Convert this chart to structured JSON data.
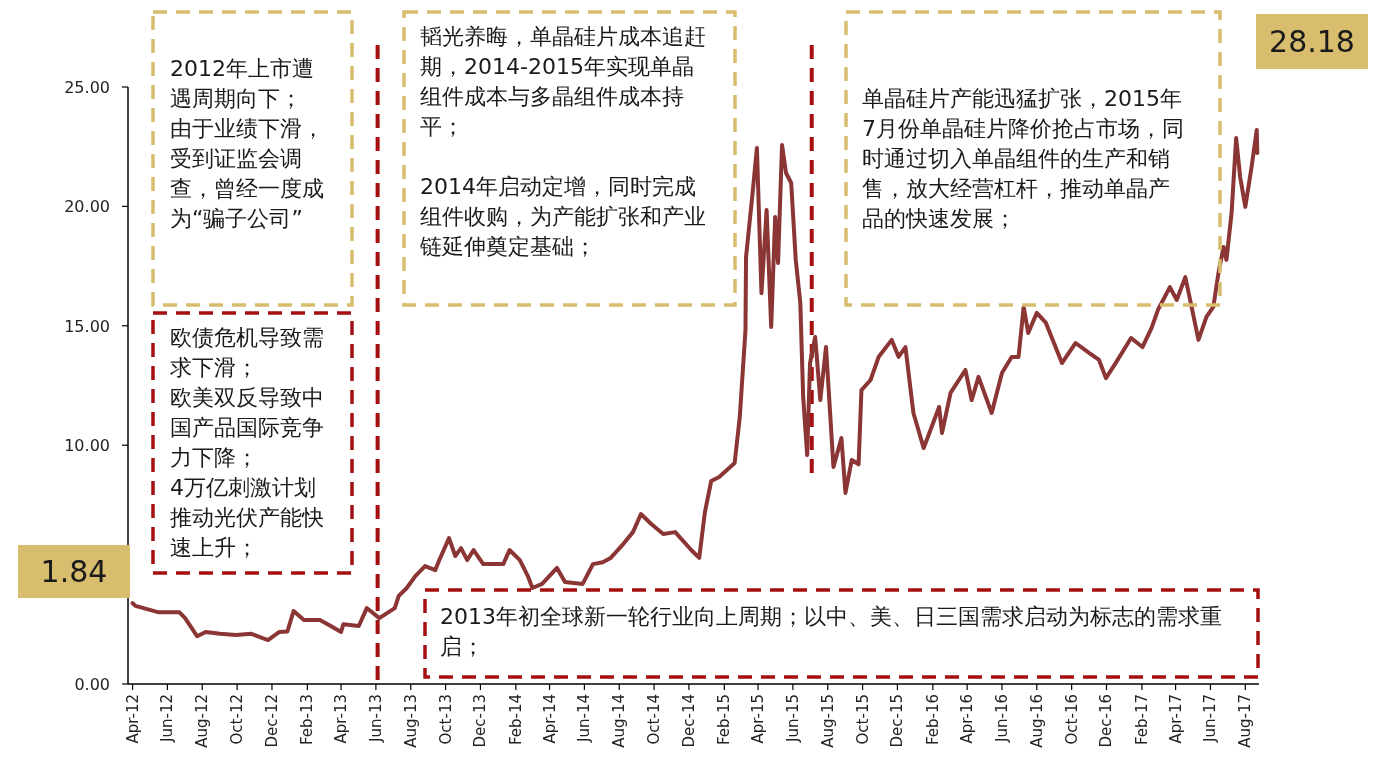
{
  "chart_data": {
    "type": "line",
    "xlim": [
      "2012-03-24",
      "2017-08-25"
    ],
    "ylim": [
      0,
      25
    ],
    "yticks": [
      {
        "value": 0,
        "label": "0.00"
      },
      {
        "value": 5,
        "label": null
      },
      {
        "value": 10,
        "label": "10.00"
      },
      {
        "value": 15,
        "label": "15.00"
      },
      {
        "value": 20,
        "label": "20.00"
      },
      {
        "value": 25,
        "label": "25.00"
      }
    ],
    "xticks": [
      {
        "value": "2012-04-01",
        "label": "Apr-12"
      },
      {
        "value": "2012-06-01",
        "label": "Jun-12"
      },
      {
        "value": "2012-08-01",
        "label": "Aug-12"
      },
      {
        "value": "2012-10-01",
        "label": "Oct-12"
      },
      {
        "value": "2012-12-01",
        "label": "Dec-12"
      },
      {
        "value": "2013-02-01",
        "label": "Feb-13"
      },
      {
        "value": "2013-04-01",
        "label": "Apr-13"
      },
      {
        "value": "2013-06-01",
        "label": "Jun-13"
      },
      {
        "value": "2013-08-01",
        "label": "Aug-13"
      },
      {
        "value": "2013-10-01",
        "label": "Oct-13"
      },
      {
        "value": "2013-12-01",
        "label": "Dec-13"
      },
      {
        "value": "2014-02-01",
        "label": "Feb-14"
      },
      {
        "value": "2014-04-01",
        "label": "Apr-14"
      },
      {
        "value": "2014-06-01",
        "label": "Jun-14"
      },
      {
        "value": "2014-08-01",
        "label": "Aug-14"
      },
      {
        "value": "2014-10-01",
        "label": "Oct-14"
      },
      {
        "value": "2014-12-01",
        "label": "Dec-14"
      },
      {
        "value": "2015-02-01",
        "label": "Feb-15"
      },
      {
        "value": "2015-04-01",
        "label": "Apr-15"
      },
      {
        "value": "2015-06-01",
        "label": "Jun-15"
      },
      {
        "value": "2015-08-01",
        "label": "Aug-15"
      },
      {
        "value": "2015-10-01",
        "label": "Oct-15"
      },
      {
        "value": "2015-12-01",
        "label": "Dec-15"
      },
      {
        "value": "2016-02-01",
        "label": "Feb-16"
      },
      {
        "value": "2016-04-01",
        "label": "Apr-16"
      },
      {
        "value": "2016-06-01",
        "label": "Jun-16"
      },
      {
        "value": "2016-08-01",
        "label": "Aug-16"
      },
      {
        "value": "2016-10-01",
        "label": "Oct-16"
      },
      {
        "value": "2016-12-01",
        "label": "Dec-16"
      },
      {
        "value": "2017-02-01",
        "label": "Feb-17"
      },
      {
        "value": "2017-04-01",
        "label": "Apr-17"
      },
      {
        "value": "2017-06-01",
        "label": "Jun-17"
      },
      {
        "value": "2017-08-01",
        "label": "Aug-17"
      }
    ],
    "grid": false,
    "ref_lines": [
      {
        "axis": "x",
        "value": "2013-06-04",
        "color": "#a50f0f",
        "line_style": "dashed"
      },
      {
        "axis": "x",
        "value": "2015-07-04",
        "color": "#a50f0f",
        "line_style": "dashed"
      }
    ],
    "annotations": [
      "2012年上市遭遇周期向下；由于业绩下滑，受到证监会调查，曾经一度成为“骗子公司”",
      "欧债危机导致需求下滑；欧美双反导致中国产品国际竞争力下降；4万亿刺激计划推动光伏产能快速上升；",
      "韬光养晦，单晶硅片成本追赶期，2014-2015年实现单晶组件成本与多晶组件成本持平；\n\n2014年启动定增，同时完成组件收购，为产能扩张和产业链延伸奠定基础；",
      "单晶硅片产能迅猛扩张，2015年7月份单晶硅片降价抢占市场，同时通过切入单晶组件的生产和销售，放大经营杠杆，推动单晶产品的快速发展；",
      "2013年初全球新一轮行业向上周期；以中、美、日三国需求启动为标志的需求重启；",
      "1.84",
      "28.18"
    ],
    "series": [
      {
        "color": "#8b3535",
        "x": [
          "2012-04-01",
          "2012-04-06",
          "2012-05-17",
          "2012-06-22",
          "2012-07-02",
          "2012-07-23",
          "2012-08-07",
          "2012-09-01",
          "2012-09-29",
          "2012-10-26",
          "2012-11-24",
          "2012-12-14",
          "2012-12-28",
          "2013-01-08",
          "2013-01-26",
          "2013-02-23",
          "2013-03-14",
          "2013-04-01",
          "2013-04-05",
          "2013-05-02",
          "2013-05-16",
          "2013-06-07",
          "2013-07-04",
          "2013-07-11",
          "2013-07-25",
          "2013-08-09",
          "2013-08-26",
          "2013-09-13",
          "2013-09-20",
          "2013-10-07",
          "2013-10-18",
          "2013-10-28",
          "2013-11-08",
          "2013-11-19",
          "2013-12-06",
          "2014-01-10",
          "2014-01-21",
          "2014-02-08",
          "2014-02-22",
          "2014-03-02",
          "2014-03-19",
          "2014-04-14",
          "2014-04-28",
          "2014-05-29",
          "2014-06-16",
          "2014-07-03",
          "2014-07-17",
          "2014-08-08",
          "2014-08-25",
          "2014-09-08",
          "2014-09-26",
          "2014-10-17",
          "2014-11-07",
          "2014-12-05",
          "2014-12-19",
          "2014-12-29",
          "2015-01-09",
          "2015-01-23",
          "2015-02-19",
          "2015-02-28",
          "2015-03-10",
          "2015-03-11",
          "2015-03-23",
          "2015-03-30",
          "2015-04-07",
          "2015-04-16",
          "2015-04-24",
          "2015-05-01",
          "2015-05-06",
          "2015-05-13",
          "2015-05-20",
          "2015-05-29",
          "2015-06-06",
          "2015-06-14",
          "2015-06-19",
          "2015-06-26",
          "2015-07-01",
          "2015-07-10",
          "2015-07-19",
          "2015-07-29",
          "2015-08-11",
          "2015-08-25",
          "2015-09-01",
          "2015-09-12",
          "2015-09-24",
          "2015-09-29",
          "2015-10-15",
          "2015-10-29",
          "2015-11-21",
          "2015-12-03",
          "2015-12-15",
          "2015-12-29",
          "2016-01-16",
          "2016-02-12",
          "2016-02-17",
          "2016-03-03",
          "2016-03-29",
          "2016-04-09",
          "2016-04-21",
          "2016-05-14",
          "2016-06-01",
          "2016-06-18",
          "2016-06-30",
          "2016-07-09",
          "2016-07-17",
          "2016-08-01",
          "2016-08-17",
          "2016-09-14",
          "2016-10-08",
          "2016-11-01",
          "2016-11-18",
          "2016-11-30",
          "2016-12-17",
          "2017-01-13",
          "2017-02-02",
          "2017-02-18",
          "2017-03-01",
          "2017-03-22",
          "2017-04-03",
          "2017-04-18",
          "2017-04-29",
          "2017-05-11",
          "2017-05-25",
          "2017-06-06",
          "2017-06-15",
          "2017-06-24",
          "2017-06-29",
          "2017-07-08",
          "2017-07-16",
          "2017-07-23",
          "2017-08-01",
          "2017-08-12",
          "2017-08-21",
          "2017-08-22"
        ],
        "values": [
          3.39,
          3.27,
          3.0,
          3.0,
          2.76,
          2.0,
          2.18,
          2.1,
          2.05,
          2.1,
          1.84,
          2.18,
          2.2,
          3.06,
          2.68,
          2.68,
          2.43,
          2.18,
          2.5,
          2.43,
          3.18,
          2.76,
          3.18,
          3.69,
          4.02,
          4.52,
          4.94,
          4.77,
          5.19,
          6.11,
          5.36,
          5.69,
          5.19,
          5.61,
          5.02,
          5.02,
          5.61,
          5.19,
          4.52,
          4.02,
          4.19,
          4.86,
          4.27,
          4.19,
          5.02,
          5.1,
          5.28,
          5.86,
          6.36,
          7.12,
          6.7,
          6.28,
          6.36,
          5.61,
          5.28,
          7.2,
          8.5,
          8.67,
          9.25,
          11.18,
          14.82,
          17.88,
          20.69,
          22.45,
          16.37,
          19.85,
          14.95,
          19.56,
          17.63,
          22.57,
          21.4,
          20.98,
          17.76,
          15.95,
          12.02,
          9.59,
          13.44,
          14.53,
          11.89,
          14.11,
          9.09,
          10.3,
          8.0,
          9.38,
          9.2,
          12.31,
          12.73,
          13.69,
          14.41,
          13.7,
          14.11,
          11.35,
          9.88,
          11.6,
          10.51,
          12.19,
          13.15,
          11.89,
          12.86,
          11.35,
          13.02,
          13.69,
          13.69,
          15.79,
          14.7,
          15.54,
          15.12,
          13.44,
          14.28,
          13.86,
          13.57,
          12.81,
          13.44,
          14.49,
          14.11,
          14.91,
          15.66,
          16.62,
          16.08,
          17.04,
          15.79,
          14.41,
          15.37,
          15.79,
          17.21,
          18.3,
          17.76,
          19.72,
          22.86,
          21.23,
          19.98,
          21.65,
          23.2,
          22.24
        ]
      }
    ]
  }
}
